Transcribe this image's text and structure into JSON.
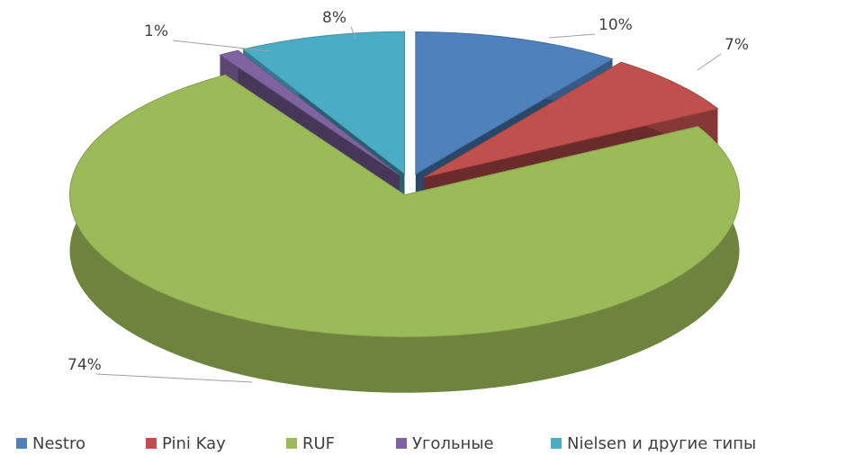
{
  "chart_data": {
    "type": "pie",
    "categories": [
      "Nestro",
      "Pini Kay",
      "RUF",
      "Угольные",
      "Nielsen и другие типы"
    ],
    "values": [
      10,
      7,
      74,
      1,
      8
    ],
    "value_labels": [
      "10%",
      "7%",
      "74%",
      "1%",
      "8%"
    ],
    "colors": [
      "#4f81bd",
      "#c0504d",
      "#9bbb59",
      "#8064a2",
      "#4bacc6"
    ],
    "legend": "bottom"
  }
}
